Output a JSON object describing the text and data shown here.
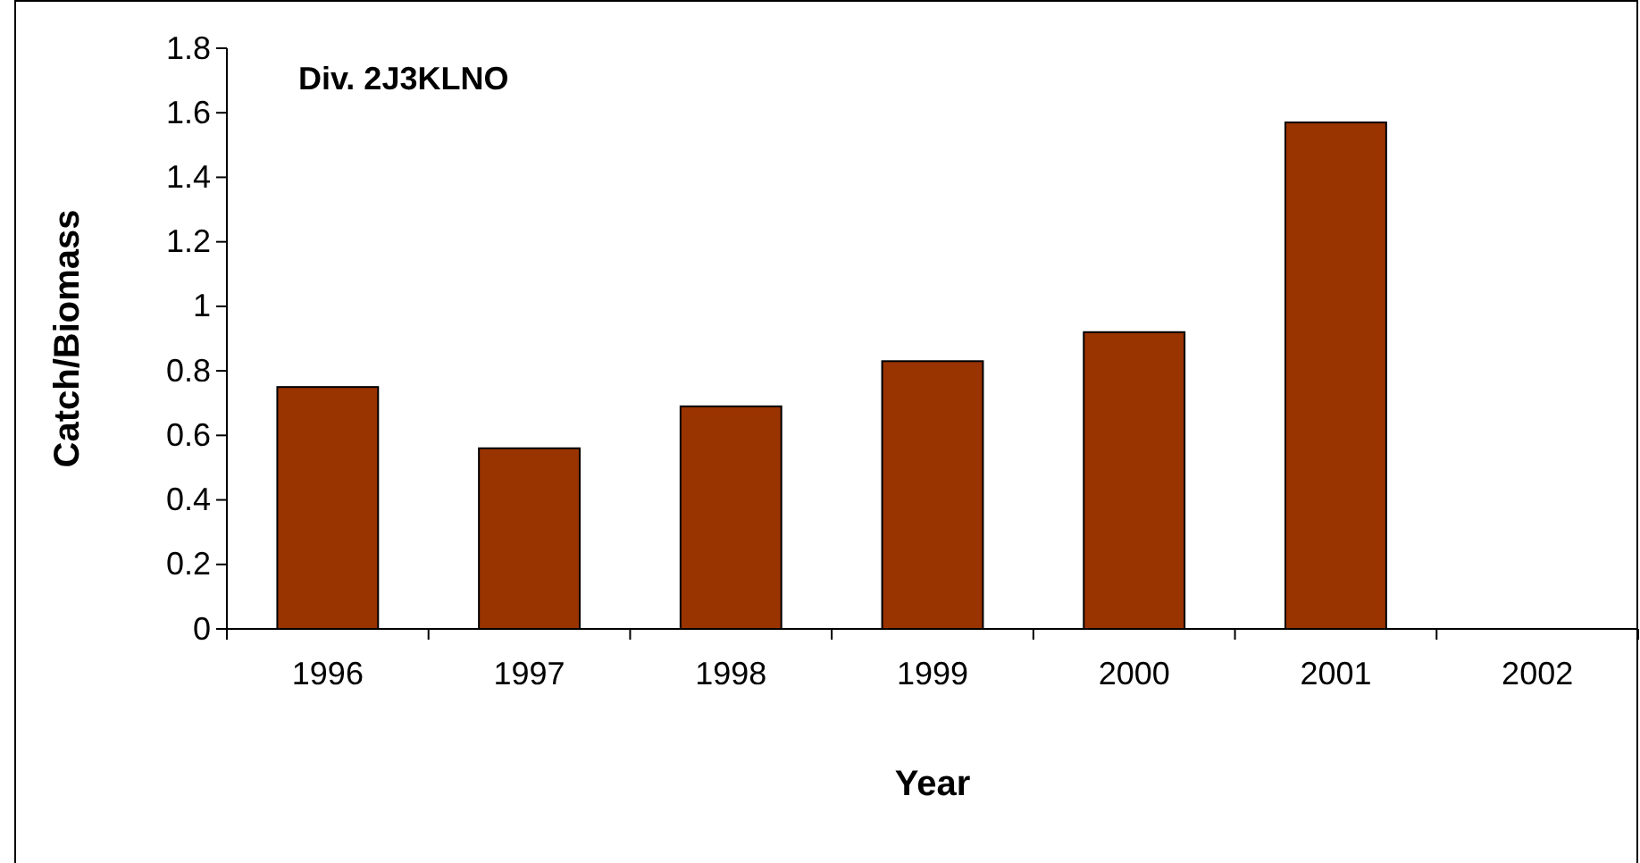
{
  "chart_data": {
    "type": "bar",
    "title": "Div. 2J3KLNO",
    "xlabel": "Year",
    "ylabel": "Catch/Biomass",
    "categories": [
      "1996",
      "1997",
      "1998",
      "1999",
      "2000",
      "2001",
      "2002"
    ],
    "values": [
      0.75,
      0.56,
      0.69,
      0.83,
      0.92,
      1.57,
      null
    ],
    "color": "#993300",
    "ylim": [
      0,
      1.8
    ],
    "yticks": [
      0,
      0.2,
      0.4,
      0.6,
      0.8,
      1,
      1.2,
      1.4,
      1.6,
      1.8
    ],
    "grid": false
  }
}
